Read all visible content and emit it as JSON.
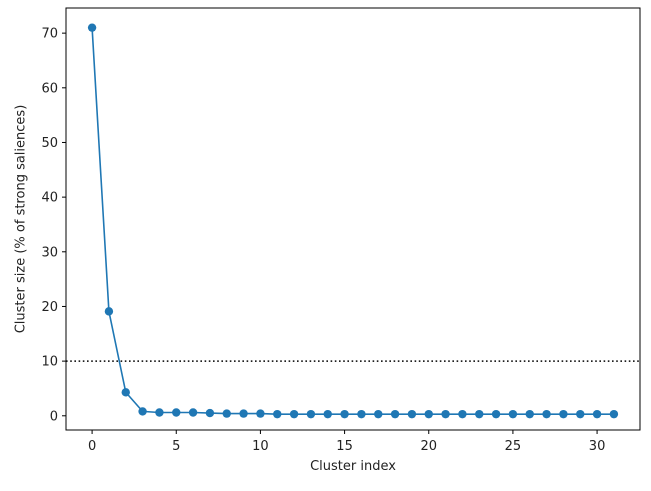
{
  "chart_data": {
    "type": "line",
    "xlabel": "Cluster index",
    "ylabel": "Cluster size (% of strong saliences)",
    "xlim": [
      -1.55,
      32.55
    ],
    "ylim": [
      -2.6,
      74.6
    ],
    "xticks": [
      0,
      5,
      10,
      15,
      20,
      25,
      30
    ],
    "yticks": [
      0,
      10,
      20,
      30,
      40,
      50,
      60,
      70
    ],
    "grid": false,
    "line_color": "#1f77b4",
    "threshold": {
      "y": 10,
      "style": "dotted",
      "color": "#000000"
    },
    "series": [
      {
        "x": [
          0,
          1,
          2,
          3,
          4,
          5,
          6,
          7,
          8,
          9,
          10,
          11,
          12,
          13,
          14,
          15,
          16,
          17,
          18,
          19,
          20,
          21,
          22,
          23,
          24,
          25,
          26,
          27,
          28,
          29,
          30,
          31
        ],
        "values": [
          71,
          19.1,
          4.3,
          0.8,
          0.6,
          0.6,
          0.6,
          0.5,
          0.4,
          0.4,
          0.4,
          0.3,
          0.3,
          0.3,
          0.3,
          0.3,
          0.3,
          0.3,
          0.3,
          0.3,
          0.3,
          0.3,
          0.3,
          0.3,
          0.3,
          0.3,
          0.3,
          0.3,
          0.3,
          0.3,
          0.3,
          0.3
        ]
      }
    ]
  }
}
